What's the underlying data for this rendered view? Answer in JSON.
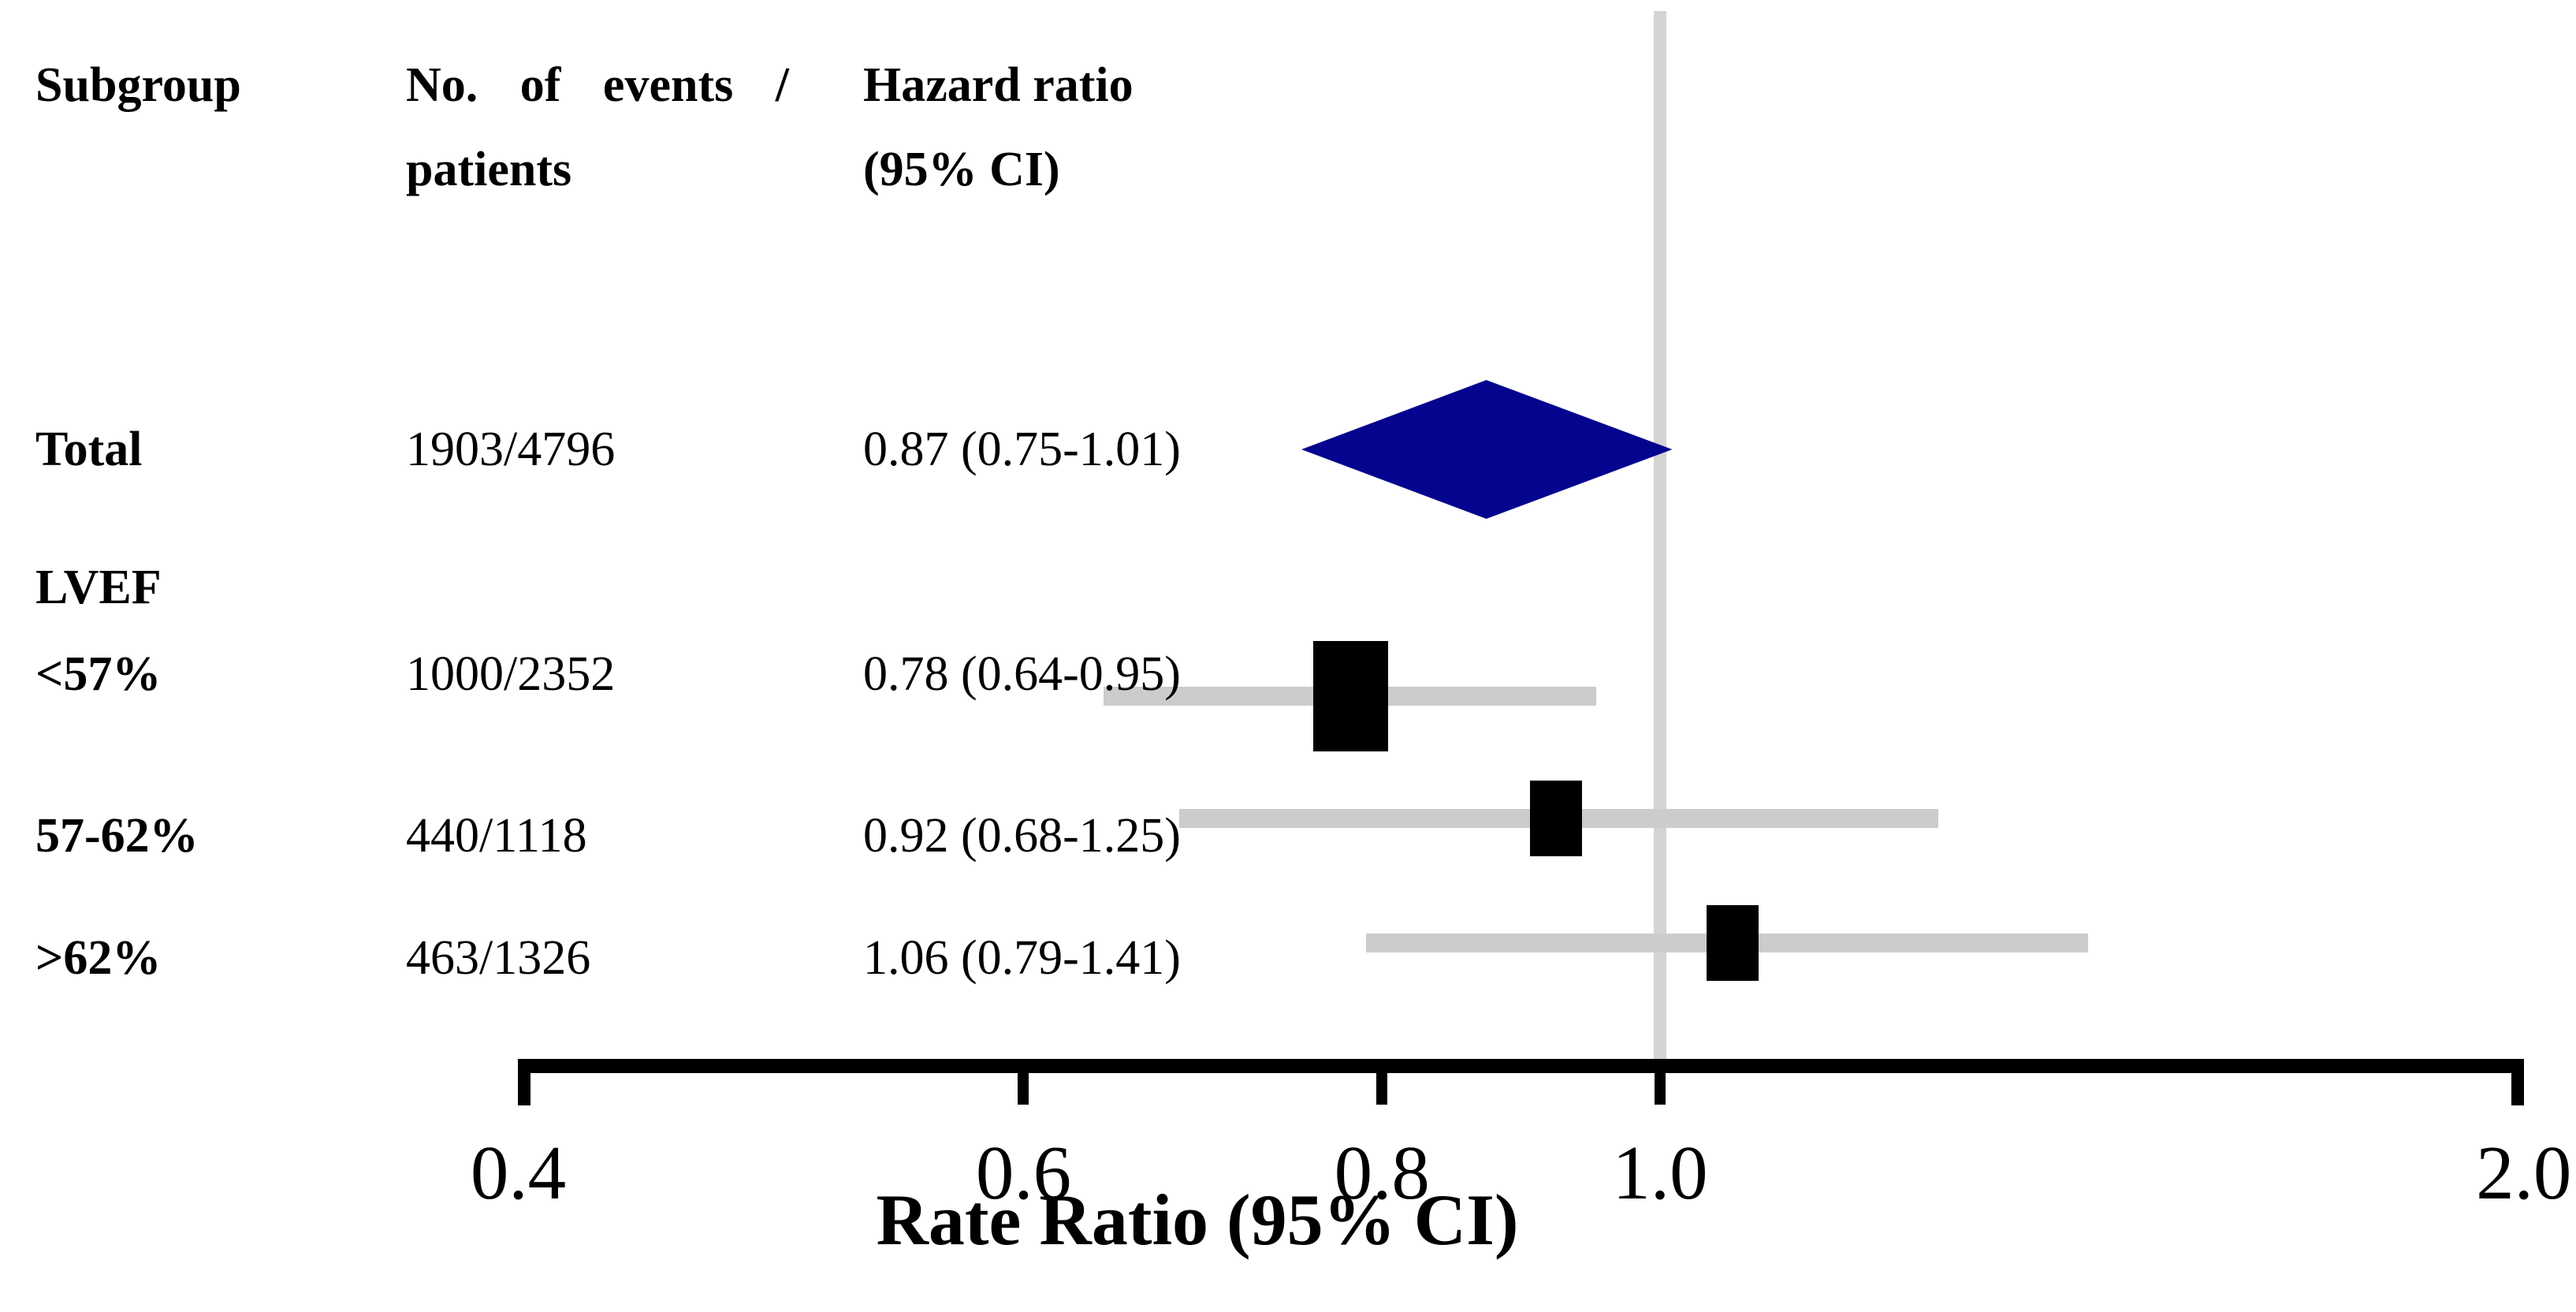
{
  "figure": {
    "kind": "forest-plot"
  },
  "table": {
    "headers": {
      "subgroup": "Subgroup",
      "events_line1": "No. of events /",
      "events_line2": "patients",
      "hr_line1": "Hazard ratio",
      "hr_line2": "(95% CI)"
    },
    "rows": [
      {
        "subgroup": "Total",
        "events": "1903/4796",
        "hr": "0.87 (0.75-1.01)"
      },
      {
        "subgroup": "LVEF",
        "events": "",
        "hr": ""
      },
      {
        "subgroup": "<57%",
        "events": "1000/2352",
        "hr": "0.78 (0.64-0.95)"
      },
      {
        "subgroup": "57-62%",
        "events": "440/1118",
        "hr": "0.92 (0.68-1.25)"
      },
      {
        "subgroup": ">62%",
        "events": "463/1326",
        "hr": "1.06 (0.79-1.41)"
      }
    ]
  },
  "chart_data": {
    "type": "forest",
    "x_scale": "log",
    "x_ticks": [
      0.4,
      0.6,
      0.8,
      1.0,
      2.0
    ],
    "x_range": [
      0.4,
      2.0
    ],
    "x_axis_label": "Rate Ratio (95% CI)",
    "reference_line": 1.0,
    "series": [
      {
        "name": "Total",
        "estimate": 0.87,
        "ci_low": 0.75,
        "ci_high": 1.01,
        "marker": "diamond",
        "events": 1903,
        "patients": 4796
      },
      {
        "name": "<57%",
        "estimate": 0.78,
        "ci_low": 0.64,
        "ci_high": 0.95,
        "marker": "square",
        "events": 1000,
        "patients": 2352
      },
      {
        "name": "57-62%",
        "estimate": 0.92,
        "ci_low": 0.68,
        "ci_high": 1.25,
        "marker": "square",
        "events": 440,
        "patients": 1118
      },
      {
        "name": ">62%",
        "estimate": 1.06,
        "ci_low": 0.79,
        "ci_high": 1.41,
        "marker": "square",
        "events": 463,
        "patients": 1326
      }
    ],
    "colors": {
      "diamond": "#04048e",
      "square": "#000000",
      "ci_line": "#cccccc",
      "reference_line": "#d4d4d4",
      "axis": "#000000"
    }
  }
}
